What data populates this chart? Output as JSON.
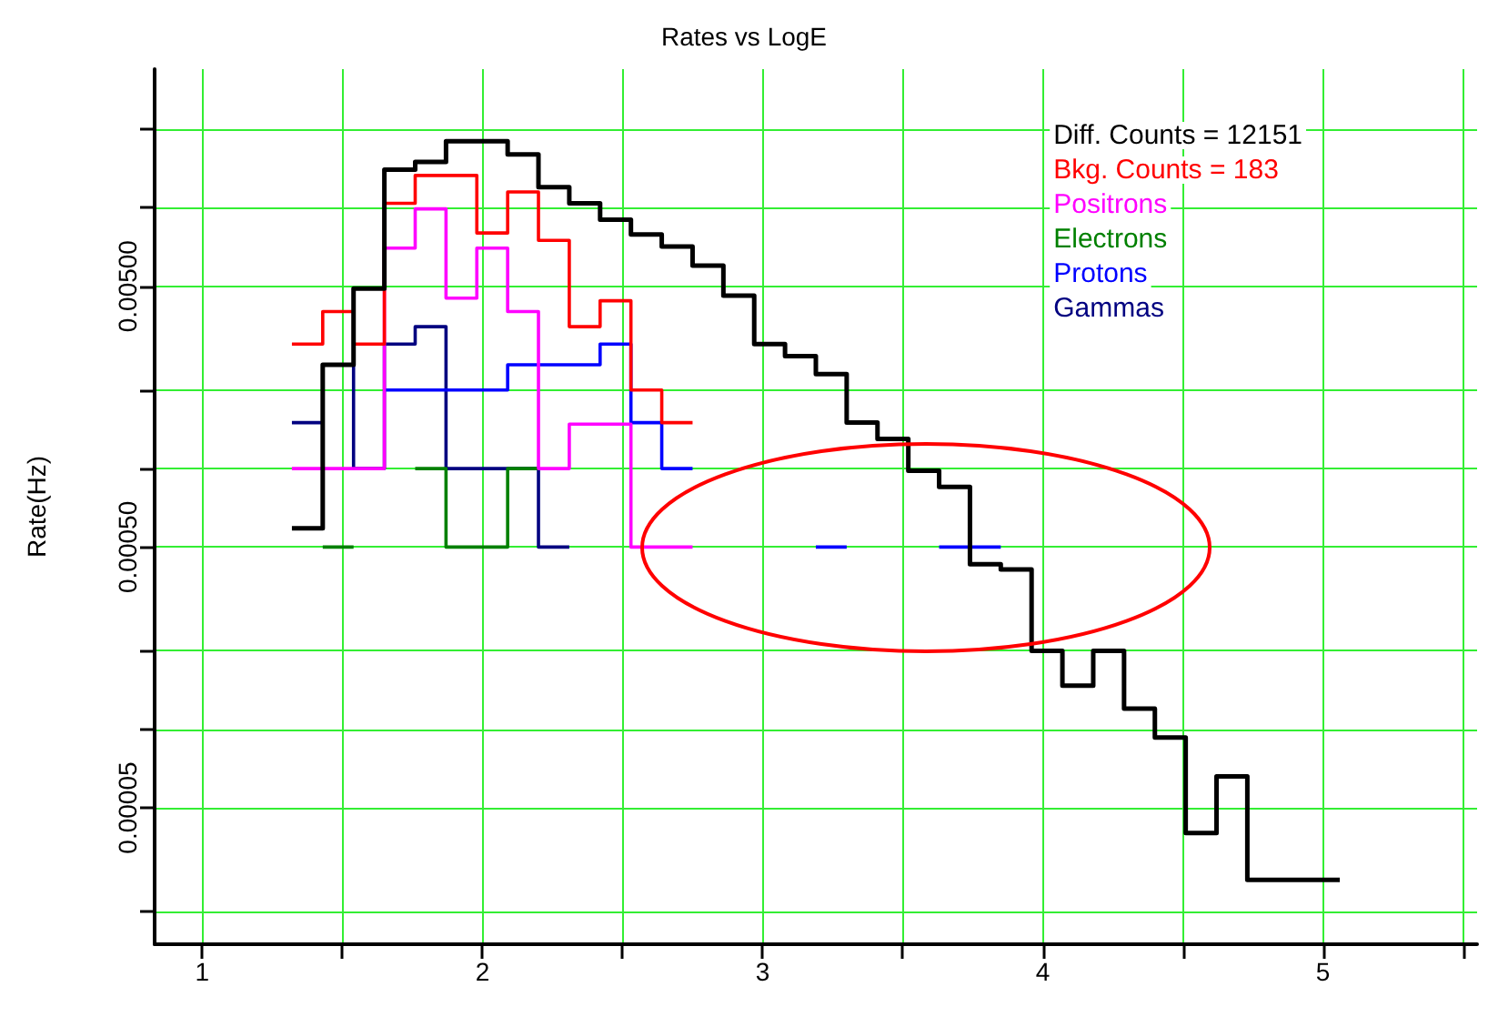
{
  "chart_data": {
    "type": "step",
    "title": "Rates vs LogE",
    "ylabel": "Rate(Hz)",
    "series": [
      {
        "name": "Diff. Counts = 12151",
        "color": "#000000",
        "x": [
          1.32,
          1.43,
          1.54,
          1.65,
          1.76,
          1.87,
          1.98,
          2.09,
          2.2,
          2.31,
          2.42,
          2.53,
          2.64,
          2.75,
          2.86,
          2.97,
          3.08,
          3.19,
          3.3,
          3.41,
          3.52,
          3.63,
          3.74,
          3.85,
          3.96,
          4.07,
          4.18,
          4.29,
          4.4,
          4.51,
          4.62,
          4.73,
          4.84,
          4.95,
          5.06
        ],
        "values": [
          0.00059,
          0.0025,
          0.0049,
          0.014,
          0.015,
          0.018,
          0.018,
          0.016,
          0.012,
          0.0104,
          0.009,
          0.0079,
          0.0071,
          0.006,
          0.0046,
          0.003,
          0.0027,
          0.0023,
          0.0015,
          0.0013,
          0.00098,
          0.00085,
          0.00043,
          0.00041,
          0.0002,
          0.000147,
          0.0002,
          0.00012,
          9.3e-05,
          4e-05,
          6.6e-05,
          2.65e-05,
          2.65e-05,
          2.65e-05,
          2.65e-05
        ]
      },
      {
        "name": "Bkg. Counts = 183",
        "color": "#ff0000",
        "x": [
          1.32,
          1.43,
          1.54,
          1.65,
          1.76,
          1.87,
          1.98,
          2.09,
          2.2,
          2.31,
          2.42,
          2.53,
          2.64,
          2.75
        ],
        "values": [
          0.003,
          0.004,
          0.003,
          0.0104,
          0.0133,
          0.0133,
          0.008,
          0.0115,
          0.0075,
          0.0035,
          0.0044,
          0.002,
          0.0015,
          0.0015
        ]
      },
      {
        "name": "Positrons",
        "color": "#ff00ff",
        "x": [
          1.32,
          1.43,
          1.54,
          1.65,
          1.76,
          1.87,
          1.98,
          2.09,
          2.2,
          2.31,
          2.42,
          2.53,
          2.64,
          2.75
        ],
        "values": [
          0.001,
          0.001,
          0.001,
          0.007,
          0.0099,
          0.0045,
          0.007,
          0.004,
          0.001,
          0.00148,
          0.00148,
          0.0005,
          0.0005,
          0.0005
        ]
      },
      {
        "name": "Electrons",
        "color": "#008000",
        "x": [
          1.43,
          1.54,
          1.76,
          1.87,
          1.98,
          2.09,
          2.2
        ],
        "values": [
          0.0005,
          null,
          0.001,
          0.0005,
          0.0005,
          0.001,
          0.001
        ]
      },
      {
        "name": "Protons",
        "color": "#0000ff",
        "x": [
          1.65,
          1.76,
          1.87,
          1.98,
          2.09,
          2.2,
          2.31,
          2.42,
          2.53,
          2.64,
          2.75,
          3.19,
          3.3,
          3.63,
          3.74,
          3.85
        ],
        "values": [
          0.002,
          0.002,
          0.002,
          0.002,
          0.0025,
          0.0025,
          0.0025,
          0.003,
          0.0015,
          0.001,
          null,
          0.0005,
          null,
          0.0005,
          0.0005,
          0.0005
        ]
      },
      {
        "name": "Gammas",
        "color": "#000080",
        "x": [
          1.32,
          1.43,
          1.54,
          1.65,
          1.76,
          1.87,
          1.98,
          2.09,
          2.2,
          2.31
        ],
        "values": [
          0.0015,
          0.0025,
          0.001,
          0.003,
          0.0035,
          0.001,
          0.001,
          0.001,
          0.0005,
          0.0005
        ]
      }
    ],
    "log": "y",
    "xlim": [
      0.83,
      5.55
    ],
    "xticks": [
      1,
      {
        "value": 1.5,
        "label": null
      },
      2,
      {
        "value": 2.5,
        "label": null
      },
      3,
      {
        "value": 3.5,
        "label": null
      },
      4,
      {
        "value": 4.5,
        "label": null
      },
      5,
      {
        "value": 5.5,
        "label": null
      }
    ],
    "ylim": [
      1.5e-05,
      0.034
    ],
    "yticks": [
      {
        "value": 2e-05,
        "label": null
      },
      {
        "value": 5e-05,
        "label": "0.00005"
      },
      {
        "value": 0.0001,
        "label": null
      },
      {
        "value": 0.0002,
        "label": null
      },
      {
        "value": 0.0005,
        "label": "0.00050"
      },
      {
        "value": 0.001,
        "label": null
      },
      {
        "value": 0.002,
        "label": null
      },
      {
        "value": 0.005,
        "label": "0.00500"
      },
      {
        "value": 0.01,
        "label": null
      },
      {
        "value": 0.02,
        "label": null
      }
    ],
    "grid": true,
    "legend": "top right",
    "marker": "none",
    "line_style": "solid"
  }
}
